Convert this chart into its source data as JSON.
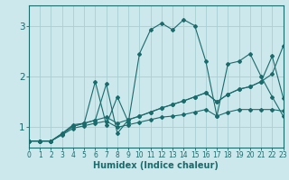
{
  "background_color": "#cce8ec",
  "grid_color": "#a8d0d4",
  "line_color": "#1a6b6b",
  "xlabel": "Humidex (Indice chaleur)",
  "xlim": [
    0,
    23
  ],
  "ylim": [
    0.6,
    3.4
  ],
  "yticks": [
    1,
    2,
    3
  ],
  "xticks": [
    0,
    1,
    2,
    3,
    4,
    5,
    6,
    7,
    8,
    9,
    10,
    11,
    12,
    13,
    14,
    15,
    16,
    17,
    18,
    19,
    20,
    21,
    22,
    23
  ],
  "series": [
    {
      "x": [
        0,
        1,
        2,
        3,
        4,
        5,
        6,
        7,
        8,
        9,
        10,
        11,
        12,
        13,
        14,
        15,
        16,
        17,
        18,
        19,
        20,
        21,
        22,
        23
      ],
      "y": [
        0.73,
        0.73,
        0.73,
        0.85,
        0.98,
        1.03,
        1.08,
        1.12,
        1.0,
        1.05,
        1.1,
        1.15,
        1.2,
        1.22,
        1.25,
        1.3,
        1.35,
        1.22,
        1.3,
        1.35,
        1.35,
        1.35,
        1.35,
        1.32
      ]
    },
    {
      "x": [
        0,
        1,
        2,
        3,
        4,
        5,
        6,
        7,
        8,
        9,
        10,
        11,
        12,
        13,
        14,
        15,
        16,
        17,
        18,
        19,
        20,
        21,
        22,
        23
      ],
      "y": [
        0.73,
        0.73,
        0.73,
        0.87,
        1.02,
        1.08,
        1.14,
        1.2,
        1.08,
        1.15,
        1.22,
        1.3,
        1.38,
        1.45,
        1.52,
        1.6,
        1.68,
        1.5,
        1.65,
        1.75,
        1.8,
        1.9,
        2.05,
        2.6
      ]
    },
    {
      "x": [
        0,
        1,
        2,
        3,
        4,
        5,
        6,
        7,
        8,
        9,
        10,
        11,
        12,
        13,
        14,
        15,
        16,
        17,
        18,
        19,
        20,
        21,
        22,
        23
      ],
      "y": [
        0.73,
        0.73,
        0.73,
        0.88,
        1.05,
        1.08,
        1.9,
        1.05,
        1.6,
        1.1,
        2.45,
        2.92,
        3.05,
        2.92,
        3.12,
        3.0,
        2.3,
        1.22,
        2.25,
        2.3,
        2.45,
        2.0,
        1.6,
        1.22
      ]
    },
    {
      "x": [
        0,
        1,
        2,
        3,
        4,
        5,
        6,
        7,
        8,
        9,
        10,
        11,
        12,
        13,
        14,
        15,
        16,
        17,
        18,
        19,
        20,
        21,
        22,
        23
      ],
      "y": [
        0.73,
        0.73,
        0.73,
        0.87,
        1.02,
        1.08,
        1.14,
        1.85,
        0.88,
        1.15,
        1.22,
        1.3,
        1.38,
        1.45,
        1.52,
        1.6,
        1.68,
        1.5,
        1.65,
        1.75,
        1.8,
        1.9,
        2.4,
        1.58
      ]
    }
  ]
}
